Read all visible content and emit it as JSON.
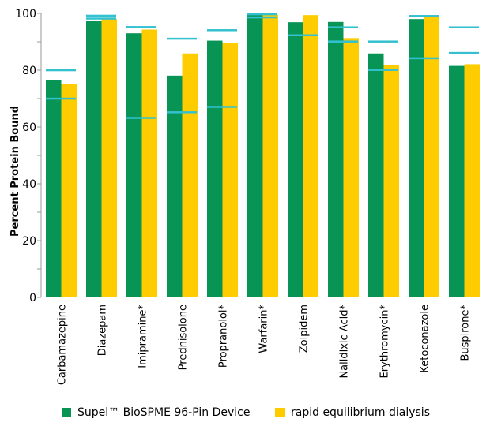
{
  "chart_data": {
    "type": "bar",
    "title": "",
    "xlabel": "",
    "ylabel": "Percent Protein Bound",
    "ylim": [
      0,
      100
    ],
    "yticks": [
      0,
      20,
      40,
      60,
      80,
      100
    ],
    "grid": false,
    "legend_placement": "bottom",
    "categories": [
      "Carbamazepine",
      "Diazepam",
      "Imipramine*",
      "Prednisolone",
      "Propranolol*",
      "Warfarin*",
      "Zolpidem",
      "Nalidixic Acid*",
      "Erythromycin*",
      "Ketoconazole",
      "Buspirone*"
    ],
    "series": [
      {
        "name": "Supel™ BioSPME 96-Pin Device",
        "color": "#079455",
        "values": [
          76.5,
          97.3,
          93.0,
          78.1,
          90.4,
          99.7,
          96.9,
          97.0,
          85.9,
          98.0,
          81.5
        ]
      },
      {
        "name": "rapid equilibrium dialysis",
        "color": "#ffcc00",
        "values": [
          75.2,
          98.0,
          94.3,
          85.9,
          89.7,
          99.5,
          99.4,
          91.3,
          81.7,
          98.7,
          82.1
        ]
      }
    ],
    "reference_lines": {
      "color": "#33c1d0",
      "values": [
        [
          80,
          70
        ],
        [
          99.2,
          98.2
        ],
        [
          95.2,
          63.2
        ],
        [
          91.1,
          65.2
        ],
        [
          94.1,
          67.1
        ],
        [
          99.7,
          98.6
        ],
        [
          92.3
        ],
        [
          95.1,
          90.1
        ],
        [
          90.1,
          80.1
        ],
        [
          99.1,
          84.2
        ],
        [
          95.1,
          86.1
        ]
      ]
    }
  }
}
